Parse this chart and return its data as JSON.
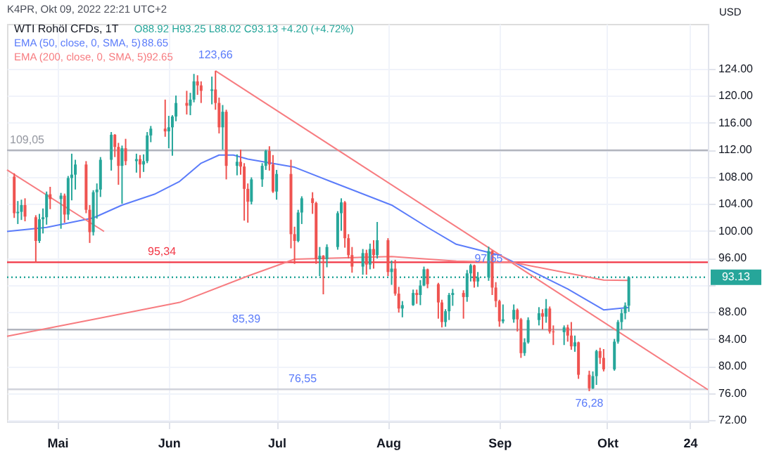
{
  "chart_data": {
    "type": "candlestick",
    "title": "WTI Rohöl CFDs, 1T",
    "ylabel": "USD",
    "x": [
      "2022-04-19",
      "2022-04-20",
      "2022-04-21",
      "2022-04-22",
      "2022-04-25",
      "2022-04-26",
      "2022-04-27",
      "2022-04-28",
      "2022-04-29",
      "2022-05-02",
      "2022-05-03",
      "2022-05-04",
      "2022-05-05",
      "2022-05-06",
      "2022-05-09",
      "2022-05-10",
      "2022-05-11",
      "2022-05-12",
      "2022-05-13",
      "2022-05-16",
      "2022-05-17",
      "2022-05-18",
      "2022-05-19",
      "2022-05-20",
      "2022-05-23",
      "2022-05-24",
      "2022-05-25",
      "2022-05-26",
      "2022-05-27",
      "2022-05-31",
      "2022-06-01",
      "2022-06-02",
      "2022-06-03",
      "2022-06-06",
      "2022-06-07",
      "2022-06-08",
      "2022-06-09",
      "2022-06-10",
      "2022-06-13",
      "2022-06-14",
      "2022-06-15",
      "2022-06-16",
      "2022-06-17",
      "2022-06-20",
      "2022-06-21",
      "2022-06-22",
      "2022-06-23",
      "2022-06-24",
      "2022-06-27",
      "2022-06-28",
      "2022-06-29",
      "2022-06-30",
      "2022-07-01",
      "2022-07-05",
      "2022-07-06",
      "2022-07-07",
      "2022-07-08",
      "2022-07-11",
      "2022-07-12",
      "2022-07-13",
      "2022-07-14",
      "2022-07-15",
      "2022-07-18",
      "2022-07-19",
      "2022-07-20",
      "2022-07-21",
      "2022-07-22",
      "2022-07-25",
      "2022-07-26",
      "2022-07-27",
      "2022-07-28",
      "2022-07-29",
      "2022-08-01",
      "2022-08-02",
      "2022-08-03",
      "2022-08-04",
      "2022-08-05",
      "2022-08-08",
      "2022-08-09",
      "2022-08-10",
      "2022-08-11",
      "2022-08-12",
      "2022-08-15",
      "2022-08-16",
      "2022-08-17",
      "2022-08-18",
      "2022-08-19",
      "2022-08-22",
      "2022-08-23",
      "2022-08-24",
      "2022-08-25",
      "2022-08-26",
      "2022-08-29",
      "2022-08-30",
      "2022-08-31",
      "2022-09-01",
      "2022-09-02",
      "2022-09-05",
      "2022-09-06",
      "2022-09-07",
      "2022-09-08",
      "2022-09-09",
      "2022-09-12",
      "2022-09-13",
      "2022-09-14",
      "2022-09-15",
      "2022-09-16",
      "2022-09-19",
      "2022-09-20",
      "2022-09-21",
      "2022-09-22",
      "2022-09-23",
      "2022-09-26",
      "2022-09-27",
      "2022-09-28",
      "2022-09-29",
      "2022-09-30",
      "2022-10-03",
      "2022-10-04",
      "2022-10-05",
      "2022-10-06",
      "2022-10-07"
    ],
    "ohlc": [
      [
        108.0,
        108.5,
        101.9,
        102.6
      ],
      [
        102.6,
        104.4,
        101.0,
        102.8
      ],
      [
        102.8,
        104.6,
        101.6,
        103.8
      ],
      [
        103.8,
        104.8,
        101.4,
        102.1
      ],
      [
        102.0,
        102.3,
        95.3,
        98.5
      ],
      [
        98.5,
        102.5,
        98.2,
        101.7
      ],
      [
        101.7,
        103.3,
        99.6,
        102.0
      ],
      [
        102.0,
        105.8,
        100.9,
        105.4
      ],
      [
        105.4,
        106.5,
        103.2,
        104.7
      ],
      [
        104.7,
        105.6,
        100.3,
        105.2
      ],
      [
        105.2,
        105.5,
        101.2,
        102.4
      ],
      [
        102.4,
        108.1,
        101.6,
        107.8
      ],
      [
        107.8,
        111.4,
        104.5,
        108.3
      ],
      [
        108.3,
        110.5,
        106.1,
        109.8
      ],
      [
        109.8,
        110.3,
        102.6,
        103.1
      ],
      [
        103.1,
        103.8,
        98.2,
        99.8
      ],
      [
        99.8,
        106.0,
        99.3,
        105.7
      ],
      [
        105.7,
        107.0,
        101.8,
        106.1
      ],
      [
        106.1,
        110.9,
        105.0,
        110.5
      ],
      [
        110.5,
        114.6,
        108.9,
        114.2
      ],
      [
        114.2,
        114.3,
        110.9,
        112.4
      ],
      [
        112.4,
        113.0,
        106.8,
        109.6
      ],
      [
        109.6,
        112.6,
        104.0,
        112.2
      ],
      [
        112.2,
        113.6,
        109.7,
        110.3
      ],
      [
        110.3,
        111.4,
        108.6,
        110.6
      ],
      [
        110.6,
        111.2,
        107.8,
        109.8
      ],
      [
        109.8,
        111.3,
        108.7,
        110.3
      ],
      [
        110.3,
        114.6,
        110.0,
        114.1
      ],
      [
        114.1,
        115.5,
        113.1,
        115.1
      ],
      [
        115.1,
        119.4,
        113.9,
        114.7
      ],
      [
        114.7,
        117.0,
        112.2,
        115.3
      ],
      [
        115.3,
        117.1,
        111.1,
        116.9
      ],
      [
        116.9,
        120.0,
        116.2,
        118.9
      ],
      [
        118.9,
        120.7,
        117.2,
        118.5
      ],
      [
        118.5,
        120.4,
        117.1,
        119.4
      ],
      [
        119.4,
        123.2,
        119.0,
        122.1
      ],
      [
        122.1,
        123.0,
        120.1,
        121.5
      ],
      [
        121.5,
        122.1,
        118.9,
        120.7
      ],
      [
        120.7,
        122.8,
        118.7,
        120.9
      ],
      [
        120.9,
        123.66,
        117.9,
        118.9
      ],
      [
        118.9,
        119.7,
        114.4,
        115.3
      ],
      [
        115.3,
        118.6,
        112.0,
        117.6
      ],
      [
        117.6,
        117.9,
        107.6,
        109.6
      ],
      [
        109.6,
        111.3,
        108.2,
        110.2
      ],
      [
        110.2,
        112.0,
        108.3,
        109.5
      ],
      [
        109.5,
        110.0,
        101.5,
        106.2
      ],
      [
        106.2,
        107.0,
        101.2,
        104.3
      ],
      [
        104.3,
        107.9,
        103.9,
        107.6
      ],
      [
        107.6,
        110.0,
        106.5,
        109.6
      ],
      [
        109.6,
        112.0,
        109.0,
        111.8
      ],
      [
        111.8,
        112.5,
        108.9,
        109.8
      ],
      [
        109.8,
        111.2,
        105.6,
        105.8
      ],
      [
        105.8,
        109.0,
        104.6,
        108.4
      ],
      [
        108.4,
        110.5,
        97.4,
        99.5
      ],
      [
        99.5,
        100.6,
        95.1,
        98.5
      ],
      [
        98.5,
        103.1,
        98.3,
        102.7
      ],
      [
        102.7,
        105.1,
        101.0,
        104.8
      ],
      [
        104.8,
        105.7,
        102.5,
        104.1
      ],
      [
        104.1,
        104.3,
        95.1,
        95.8
      ],
      [
        95.8,
        97.6,
        93.3,
        96.3
      ],
      [
        96.3,
        96.4,
        90.6,
        95.8
      ],
      [
        95.8,
        98.0,
        94.6,
        97.6
      ],
      [
        97.6,
        102.9,
        97.2,
        102.6
      ],
      [
        102.6,
        104.8,
        100.0,
        104.2
      ],
      [
        104.2,
        104.4,
        97.5,
        98.9
      ],
      [
        98.9,
        99.5,
        95.9,
        96.4
      ],
      [
        96.4,
        97.6,
        93.8,
        94.7
      ],
      [
        94.7,
        97.3,
        93.5,
        96.7
      ],
      [
        96.7,
        97.2,
        93.5,
        95.0
      ],
      [
        95.0,
        98.1,
        94.3,
        97.3
      ],
      [
        97.3,
        98.6,
        94.4,
        96.4
      ],
      [
        96.4,
        101.3,
        95.9,
        98.6
      ],
      [
        98.6,
        98.9,
        93.3,
        93.9
      ],
      [
        93.9,
        95.6,
        92.0,
        94.4
      ],
      [
        94.4,
        95.7,
        90.4,
        90.7
      ],
      [
        90.7,
        91.7,
        87.9,
        88.5
      ],
      [
        88.5,
        89.6,
        87.2,
        89.0
      ],
      [
        89.0,
        91.3,
        88.9,
        90.8
      ],
      [
        90.8,
        91.3,
        89.2,
        90.5
      ],
      [
        90.5,
        92.7,
        89.0,
        91.9
      ],
      [
        91.9,
        94.7,
        91.8,
        94.3
      ],
      [
        94.3,
        94.4,
        91.5,
        92.1
      ],
      [
        92.1,
        92.3,
        87.0,
        89.4
      ],
      [
        89.4,
        89.8,
        85.7,
        86.5
      ],
      [
        86.5,
        88.4,
        85.8,
        88.1
      ],
      [
        88.1,
        90.8,
        86.8,
        90.5
      ],
      [
        90.5,
        91.4,
        88.9,
        90.8
      ],
      [
        90.8,
        91.2,
        87.0,
        90.2
      ],
      [
        90.2,
        94.2,
        89.5,
        93.7
      ],
      [
        93.7,
        95.1,
        92.5,
        94.9
      ],
      [
        94.9,
        95.0,
        91.6,
        92.5
      ],
      [
        92.5,
        93.9,
        91.7,
        93.1
      ],
      [
        93.1,
        97.65,
        92.6,
        97.0
      ],
      [
        97.0,
        97.1,
        90.5,
        91.6
      ],
      [
        91.6,
        92.4,
        88.7,
        89.6
      ],
      [
        89.6,
        89.8,
        85.8,
        86.6
      ],
      [
        86.6,
        89.1,
        86.3,
        86.9
      ],
      [
        86.9,
        89.1,
        86.4,
        88.3
      ],
      [
        88.3,
        88.5,
        85.1,
        86.9
      ],
      [
        86.9,
        87.1,
        81.2,
        81.9
      ],
      [
        81.9,
        84.1,
        81.5,
        83.5
      ],
      [
        83.5,
        87.2,
        83.3,
        86.8
      ],
      [
        86.8,
        88.7,
        86.0,
        87.8
      ],
      [
        87.8,
        88.4,
        85.4,
        87.3
      ],
      [
        87.3,
        89.9,
        86.4,
        88.5
      ],
      [
        88.5,
        88.8,
        84.8,
        85.1
      ],
      [
        85.1,
        86.0,
        83.1,
        85.0
      ],
      [
        85.0,
        86.0,
        83.1,
        85.7
      ],
      [
        85.7,
        86.1,
        83.6,
        84.5
      ],
      [
        84.5,
        86.5,
        82.4,
        82.9
      ],
      [
        82.9,
        84.5,
        82.1,
        83.5
      ],
      [
        83.5,
        83.6,
        78.1,
        78.7
      ],
      [
        78.7,
        79.3,
        76.28,
        76.7
      ],
      [
        76.7,
        79.2,
        76.6,
        78.5
      ],
      [
        78.5,
        82.4,
        77.2,
        82.2
      ],
      [
        82.2,
        82.7,
        80.3,
        81.2
      ],
      [
        81.2,
        82.5,
        79.2,
        79.5
      ],
      [
        79.5,
        84.0,
        79.3,
        83.6
      ],
      [
        83.6,
        86.8,
        83.3,
        86.5
      ],
      [
        86.5,
        88.4,
        85.4,
        87.8
      ],
      [
        87.8,
        89.4,
        86.9,
        88.93
      ],
      [
        88.92,
        93.25,
        88.02,
        93.13
      ]
    ],
    "colors": [
      "#ef5350",
      "#26a69a",
      "#26a69a",
      "#ef5350",
      "#ef5350",
      "#26a69a",
      "#26a69a",
      "#26a69a",
      "#ef5350",
      "#26a69a",
      "#ef5350",
      "#26a69a",
      "#26a69a",
      "#26a69a",
      "#ef5350",
      "#ef5350",
      "#26a69a",
      "#26a69a",
      "#26a69a",
      "#26a69a",
      "#ef5350",
      "#ef5350",
      "#26a69a",
      "#ef5350",
      "#26a69a",
      "#ef5350",
      "#26a69a",
      "#26a69a",
      "#26a69a",
      "#ef5350",
      "#26a69a",
      "#26a69a",
      "#26a69a",
      "#ef5350",
      "#26a69a",
      "#26a69a",
      "#ef5350",
      "#ef5350",
      "#26a69a",
      "#ef5350",
      "#ef5350",
      "#26a69a",
      "#ef5350",
      "#26a69a",
      "#ef5350",
      "#ef5350",
      "#ef5350",
      "#26a69a",
      "#26a69a",
      "#26a69a",
      "#ef5350",
      "#ef5350",
      "#26a69a",
      "#ef5350",
      "#ef5350",
      "#26a69a",
      "#26a69a",
      "#ef5350",
      "#ef5350",
      "#26a69a",
      "#ef5350",
      "#26a69a",
      "#26a69a",
      "#26a69a",
      "#ef5350",
      "#ef5350",
      "#ef5350",
      "#26a69a",
      "#ef5350",
      "#26a69a",
      "#ef5350",
      "#26a69a",
      "#ef5350",
      "#26a69a",
      "#ef5350",
      "#ef5350",
      "#26a69a",
      "#26a69a",
      "#ef5350",
      "#26a69a",
      "#26a69a",
      "#ef5350",
      "#ef5350",
      "#ef5350",
      "#26a69a",
      "#26a69a",
      "#26a69a",
      "#ef5350",
      "#26a69a",
      "#26a69a",
      "#ef5350",
      "#26a69a",
      "#26a69a",
      "#ef5350",
      "#ef5350",
      "#ef5350",
      "#26a69a",
      "#26a69a",
      "#ef5350",
      "#ef5350",
      "#26a69a",
      "#26a69a",
      "#26a69a",
      "#ef5350",
      "#26a69a",
      "#ef5350",
      "#ef5350",
      "#26a69a",
      "#ef5350",
      "#ef5350",
      "#26a69a",
      "#ef5350",
      "#ef5350",
      "#26a69a",
      "#26a69a",
      "#ef5350",
      "#ef5350",
      "#26a69a",
      "#26a69a",
      "#26a69a",
      "#26a69a",
      "#26a69a"
    ],
    "series": [
      {
        "name": "EMA (50, close, 0, SMA, 5)",
        "type": "line",
        "color": "#5b7cfa",
        "x": [
          "2022-04-17",
          "2022-04-28",
          "2022-05-11",
          "2022-05-19",
          "2022-05-28",
          "2022-06-04",
          "2022-06-10",
          "2022-06-15",
          "2022-06-19",
          "2022-06-23",
          "2022-07-06",
          "2022-07-16",
          "2022-08-02",
          "2022-08-12",
          "2022-08-20",
          "2022-09-01",
          "2022-09-09",
          "2022-09-20",
          "2022-09-30",
          "2022-10-07"
        ],
        "values": [
          99.9,
          100.5,
          101.9,
          103.8,
          105.4,
          107.3,
          110.0,
          111.2,
          111.2,
          110.6,
          109.4,
          107.3,
          103.8,
          100.5,
          98.0,
          96.4,
          94.3,
          91.4,
          88.3,
          88.65
        ]
      },
      {
        "name": "EMA (200, close, 0, SMA, 5)",
        "type": "line",
        "color": "#f77c80",
        "x": [
          "2022-04-17",
          "2022-05-11",
          "2022-06-04",
          "2022-06-23",
          "2022-07-06",
          "2022-08-02",
          "2022-08-20",
          "2022-09-05",
          "2022-09-30",
          "2022-10-07"
        ],
        "values": [
          84.4,
          86.9,
          89.4,
          93.3,
          95.8,
          96.2,
          95.5,
          95.3,
          92.7,
          92.65
        ]
      },
      {
        "type": "line",
        "color": "#f77c80",
        "x": [
          "2022-06-14",
          "2022-10-29"
        ],
        "values": [
          123.66,
          76.5
        ]
      },
      {
        "type": "line",
        "color": "#f77c80",
        "x": [
          "2022-04-17",
          "2022-05-14"
        ],
        "values": [
          109.0,
          99.9
        ]
      }
    ],
    "ref_lines": [
      {
        "axis": "y",
        "value": 111.9,
        "color": "#b2b5be"
      },
      {
        "axis": "y",
        "value": 95.34,
        "label": "95,34",
        "color": "#f23645"
      },
      {
        "axis": "y",
        "value": 85.39,
        "label": "85,39",
        "color": "#b2b5be"
      },
      {
        "axis": "y",
        "value": 76.55,
        "label": "76,55",
        "color": "#d1d4dc"
      },
      {
        "axis": "y",
        "value": 93.13,
        "label": "93.13",
        "color": "#26a69a",
        "line_style": "dotted"
      }
    ],
    "annotations": [
      "K4PR, Okt 09, 2022 22:21 UTC+2",
      "O88.92 H93.25 L88.02 C93.13 +4.20 (+4.72%)",
      "88.65",
      "92.65",
      "109,05",
      {
        "text": "123,66",
        "x": "2022-06-14",
        "y": 123.66
      },
      {
        "text": "97,65",
        "x": "2022-08-29",
        "y": 97.65
      },
      {
        "text": "76,28",
        "x": "2022-09-26",
        "y": 76.28
      }
    ],
    "xlim": [
      "2022-04-17",
      "2022-10-29"
    ],
    "xticks": [
      {
        "value": "2022-05-01",
        "label": "Mai"
      },
      {
        "value": "2022-06-01",
        "label": "Jun"
      },
      {
        "value": "2022-07-01",
        "label": "Jul"
      },
      {
        "value": "2022-08-01",
        "label": "Aug"
      },
      {
        "value": "2022-09-01",
        "label": "Sep"
      },
      {
        "value": "2022-10-01",
        "label": "Okt"
      },
      {
        "value": "2022-10-24",
        "label": "24"
      }
    ],
    "ylim": [
      71.8,
      130.6
    ],
    "yticks": [
      {
        "value": 72,
        "label": "72.00"
      },
      {
        "value": 76,
        "label": "76.00"
      },
      {
        "value": 80,
        "label": "80.00"
      },
      {
        "value": 84,
        "label": "84.00"
      },
      {
        "value": 88,
        "label": "88.00"
      },
      {
        "value": 92,
        "label": null
      },
      {
        "value": 96,
        "label": "96.00"
      },
      {
        "value": 100,
        "label": "100.00"
      },
      {
        "value": 104,
        "label": "104.00"
      },
      {
        "value": 108,
        "label": "108.00"
      },
      {
        "value": 112,
        "label": "112.00"
      },
      {
        "value": 116,
        "label": "116.00"
      },
      {
        "value": 120,
        "label": "120.00"
      },
      {
        "value": 124,
        "label": "124.00"
      }
    ],
    "grid": true,
    "legend": "top left"
  }
}
